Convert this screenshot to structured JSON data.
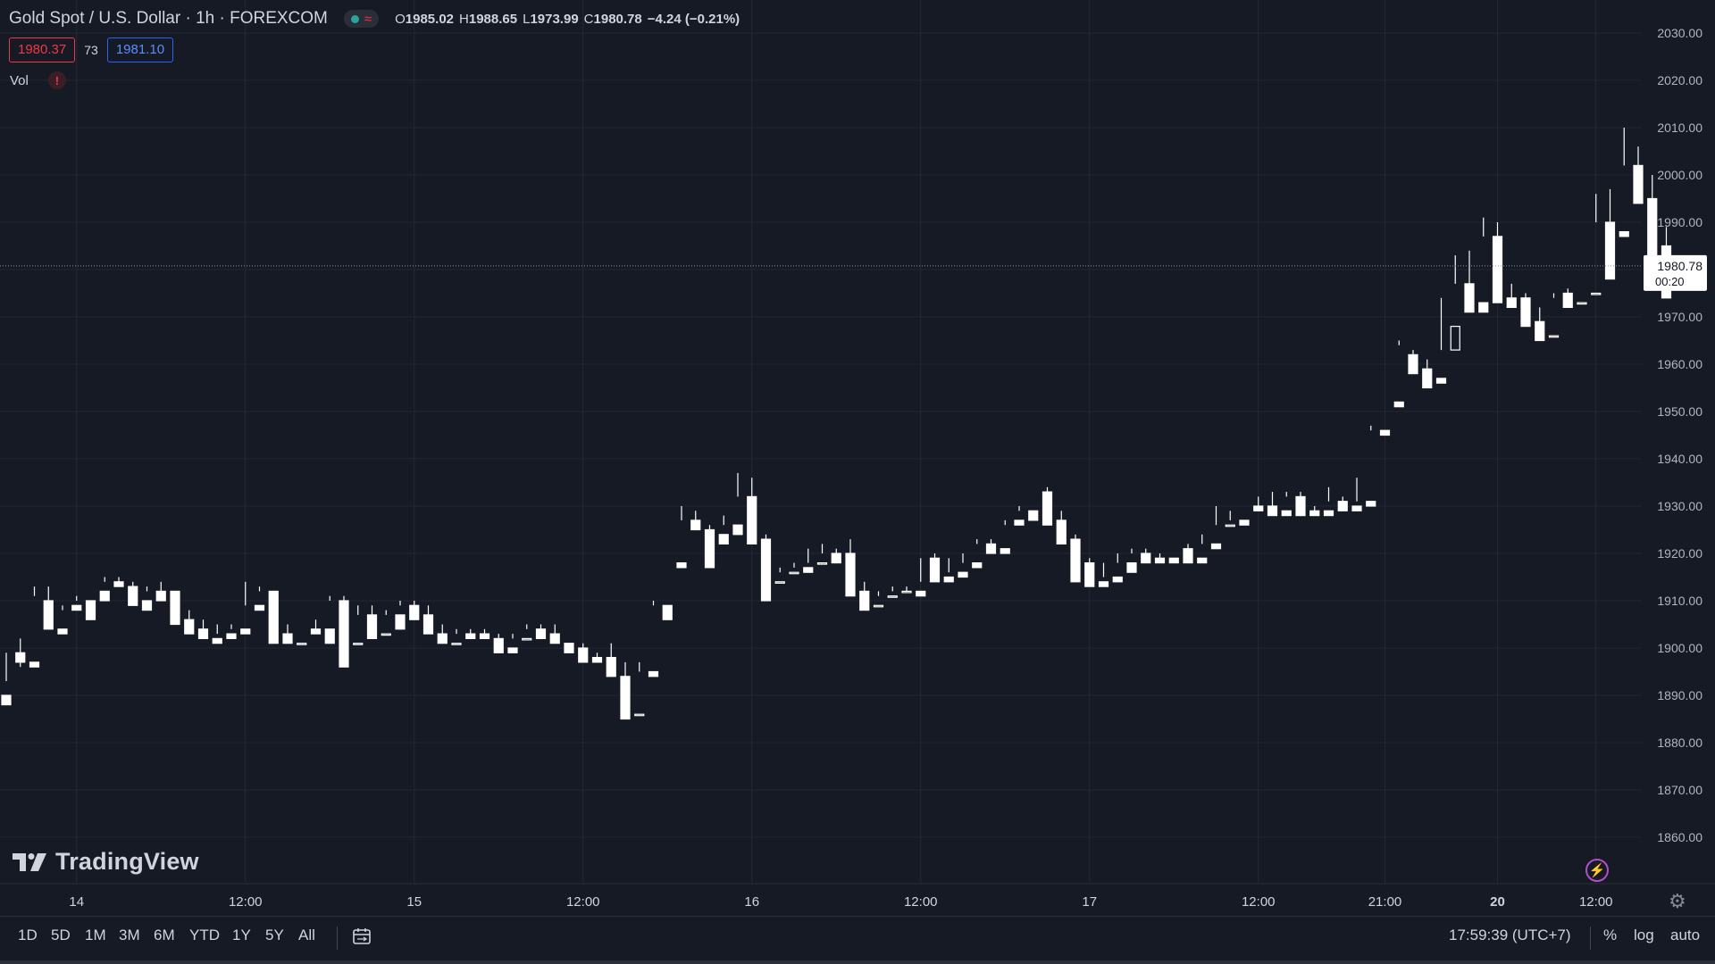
{
  "header": {
    "symbol": "Gold Spot / U.S. Dollar · 1h · FOREXCOM",
    "ohlc": {
      "o_label": "O",
      "o": "1985.02",
      "h_label": "H",
      "h": "1988.65",
      "l_label": "L",
      "l": "1973.99",
      "c_label": "C",
      "c": "1980.78",
      "change": "−4.24 (−0.21%)"
    },
    "bid": "1980.37",
    "spread": "73",
    "ask": "1981.10",
    "vol_label": "Vol",
    "vol_warning": "!"
  },
  "icons": {
    "market_status": "green-dot-icon",
    "wave": "wave-icon",
    "warning": "warning-icon",
    "logo": "tradingview-logo-icon",
    "bolt": "lightning-icon",
    "gear": "gear-icon",
    "calendar": "calendar-range-icon"
  },
  "logo_text": "TradingView",
  "price_tag": {
    "price": "1980.78",
    "countdown": "00:20"
  },
  "bottom": {
    "ranges": [
      "1D",
      "5D",
      "1M",
      "3M",
      "6M",
      "YTD",
      "1Y",
      "5Y",
      "All"
    ],
    "clock": "17:59:39 (UTC+7)",
    "percent": "%",
    "log": "log",
    "auto": "auto"
  },
  "colors": {
    "background": "#161A25",
    "grid": "#232733",
    "candle": "#FFFFFF",
    "text": "#D1D4DC",
    "bid": "#F23645",
    "ask": "#2962FF"
  },
  "chart_data": {
    "type": "candlestick",
    "ylim": [
      1853,
      2035
    ],
    "yticks": [
      2030,
      2020,
      2010,
      2000,
      1990,
      1980,
      1970,
      1960,
      1950,
      1940,
      1930,
      1920,
      1910,
      1900,
      1890,
      1880,
      1870,
      1860
    ],
    "ytick_labels": [
      "2030.00",
      "2020.00",
      "2010.00",
      "2000.00",
      "1990.00",
      "1980.00",
      "1970.00",
      "1960.00",
      "1950.00",
      "1940.00",
      "1930.00",
      "1920.00",
      "1910.00",
      "1900.00",
      "1890.00",
      "1880.00",
      "1870.00",
      "1860.00"
    ],
    "xtick_labels": [
      {
        "label": "14",
        "bar": 5,
        "bold": false
      },
      {
        "label": "12:00",
        "bar": 17,
        "bold": false
      },
      {
        "label": "15",
        "bar": 29,
        "bold": false
      },
      {
        "label": "12:00",
        "bar": 41,
        "bold": false
      },
      {
        "label": "16",
        "bar": 53,
        "bold": false
      },
      {
        "label": "12:00",
        "bar": 65,
        "bold": false
      },
      {
        "label": "17",
        "bar": 77,
        "bold": false
      },
      {
        "label": "12:00",
        "bar": 89,
        "bold": false
      },
      {
        "label": "21:00",
        "bar": 98,
        "bold": false
      },
      {
        "label": "20",
        "bar": 106,
        "bold": true
      },
      {
        "label": "12:00",
        "bar": 113,
        "bold": false
      }
    ],
    "last_price": 1980.78,
    "candles": [
      [
        1890,
        1899,
        1893,
        1888
      ],
      [
        1899,
        1902,
        1896,
        1897
      ],
      [
        1897,
        1913,
        1911,
        1896
      ],
      [
        1910,
        1913,
        1904,
        1904
      ],
      [
        1904,
        1909,
        1908,
        1903
      ],
      [
        1909,
        1911,
        1910,
        1908
      ],
      [
        1910,
        1912,
        1912,
        1906
      ],
      [
        1912,
        1915,
        1914,
        1910
      ],
      [
        1914,
        1915,
        1913,
        1913
      ],
      [
        1913,
        1914,
        1910,
        1909
      ],
      [
        1910,
        1913,
        1912,
        1908
      ],
      [
        1912,
        1914,
        1912,
        1910
      ],
      [
        1912,
        1912,
        1906,
        1905
      ],
      [
        1906,
        1908,
        1904,
        1903
      ],
      [
        1904,
        1906,
        1902,
        1902
      ],
      [
        1902,
        1905,
        1903,
        1901
      ],
      [
        1903,
        1905,
        1904,
        1902
      ],
      [
        1904,
        1914,
        1909,
        1903
      ],
      [
        1909,
        1913,
        1912,
        1908
      ],
      [
        1912,
        1912,
        1903,
        1901
      ],
      [
        1903,
        1905,
        1901,
        1901
      ],
      [
        1901,
        1904,
        1904,
        1901
      ],
      [
        1904,
        1906,
        1904,
        1903
      ],
      [
        1904,
        1911,
        1910,
        1901
      ],
      [
        1910,
        1911,
        1901,
        1896
      ],
      [
        1901,
        1909,
        1907,
        1901
      ],
      [
        1907,
        1909,
        1903,
        1902
      ],
      [
        1903,
        1908,
        1907,
        1903
      ],
      [
        1907,
        1910,
        1909,
        1904
      ],
      [
        1909,
        1910,
        1907,
        1906
      ],
      [
        1907,
        1909,
        1903,
        1903
      ],
      [
        1903,
        1905,
        1901,
        1901
      ],
      [
        1901,
        1904,
        1903,
        1901
      ],
      [
        1903,
        1904,
        1903,
        1902
      ],
      [
        1903,
        1904,
        1902,
        1902
      ],
      [
        1902,
        1903,
        1900,
        1899
      ],
      [
        1900,
        1903,
        1902,
        1899
      ],
      [
        1902,
        1905,
        1904,
        1902
      ],
      [
        1904,
        1905,
        1903,
        1902
      ],
      [
        1903,
        1905,
        1901,
        1901
      ],
      [
        1901,
        1901,
        1900,
        1899
      ],
      [
        1900,
        1901,
        1898,
        1897
      ],
      [
        1898,
        1899,
        1898,
        1897
      ],
      [
        1898,
        1901,
        1894,
        1894
      ],
      [
        1894,
        1897,
        1885,
        1885
      ],
      [
        1886,
        1897,
        1895,
        1886
      ],
      [
        1895,
        1910,
        1909,
        1894
      ],
      [
        1909,
        1918,
        1918,
        1906
      ],
      [
        1918,
        1930,
        1927,
        1917
      ],
      [
        1927,
        1929,
        1925,
        1925
      ],
      [
        1925,
        1926,
        1924,
        1917
      ],
      [
        1924,
        1928,
        1926,
        1922
      ],
      [
        1926,
        1937,
        1932,
        1924
      ],
      [
        1932,
        1936,
        1923,
        1922
      ],
      [
        1923,
        1924,
        1914,
        1910
      ],
      [
        1914,
        1917,
        1916,
        1914
      ],
      [
        1916,
        1918,
        1917,
        1916
      ],
      [
        1917,
        1921,
        1918,
        1916
      ],
      [
        1918,
        1922,
        1920,
        1918
      ],
      [
        1920,
        1921,
        1919,
        1918
      ],
      [
        1920,
        1923,
        1912,
        1911
      ],
      [
        1912,
        1914,
        1909,
        1908
      ],
      [
        1909,
        1912,
        1911,
        1909
      ],
      [
        1911,
        1913,
        1912,
        1911
      ],
      [
        1912,
        1913,
        1912,
        1912
      ],
      [
        1912,
        1914,
        1919,
        1911
      ],
      [
        1919,
        1920,
        1915,
        1914
      ],
      [
        1915,
        1919,
        1916,
        1914
      ],
      [
        1916,
        1920,
        1918,
        1915
      ],
      [
        1918,
        1923,
        1922,
        1917
      ],
      [
        1922,
        1923,
        1921,
        1920
      ],
      [
        1921,
        1926,
        1927,
        1920
      ],
      [
        1927,
        1930,
        1929,
        1926
      ],
      [
        1929,
        1933,
        1933,
        1927
      ],
      [
        1933,
        1934,
        1927,
        1926
      ],
      [
        1927,
        1929,
        1923,
        1922
      ],
      [
        1923,
        1924,
        1918,
        1914
      ],
      [
        1918,
        1919,
        1914,
        1913
      ],
      [
        1914,
        1918,
        1915,
        1913
      ],
      [
        1915,
        1920,
        1918,
        1914
      ],
      [
        1918,
        1921,
        1920,
        1916
      ],
      [
        1920,
        1921,
        1919,
        1918
      ],
      [
        1919,
        1920,
        1919,
        1918
      ],
      [
        1919,
        1921,
        1921,
        1918
      ],
      [
        1921,
        1922,
        1919,
        1918
      ],
      [
        1919,
        1924,
        1922,
        1918
      ],
      [
        1922,
        1930,
        1926,
        1921
      ],
      [
        1926,
        1929,
        1927,
        1926
      ],
      [
        1927,
        1930,
        1930,
        1926
      ],
      [
        1930,
        1932,
        1930,
        1929
      ],
      [
        1930,
        1933,
        1929,
        1928
      ],
      [
        1929,
        1933,
        1932,
        1928
      ],
      [
        1932,
        1933,
        1929,
        1928
      ],
      [
        1929,
        1930,
        1929,
        1928
      ],
      [
        1929,
        1934,
        1931,
        1928
      ],
      [
        1931,
        1932,
        1930,
        1929
      ],
      [
        1930,
        1936,
        1931,
        1929
      ],
      [
        1931,
        1947,
        1946,
        1930
      ],
      [
        1946,
        1952,
        1952,
        1945
      ],
      [
        1952,
        1965,
        1964,
        1951
      ],
      [
        1962,
        1963,
        1959,
        1958
      ],
      [
        1959,
        1961,
        1957,
        1955
      ],
      [
        1957,
        1974,
        1963,
        1956
      ],
      [
        1963,
        1983,
        1977,
        1968
      ],
      [
        1977,
        1984,
        1973,
        1971
      ],
      [
        1973,
        1991,
        1987,
        1971
      ],
      [
        1987,
        1990,
        1974,
        1973
      ],
      [
        1974,
        1977,
        1974,
        1972
      ],
      [
        1974,
        1975,
        1969,
        1968
      ],
      [
        1969,
        1972,
        1966,
        1965
      ],
      [
        1966,
        1974,
        1975,
        1966
      ],
      [
        1975,
        1976,
        1973,
        1972
      ],
      [
        1973,
        1975,
        1975,
        1973
      ],
      [
        1975,
        1996,
        1990,
        1975
      ],
      [
        1990,
        1997,
        1988,
        1978
      ],
      [
        1988,
        2010,
        2002,
        1987
      ],
      [
        2002,
        2006,
        1995,
        1994
      ],
      [
        1995,
        2000,
        1981,
        1980
      ],
      [
        1985,
        1989,
        1980,
        1974
      ]
    ]
  }
}
